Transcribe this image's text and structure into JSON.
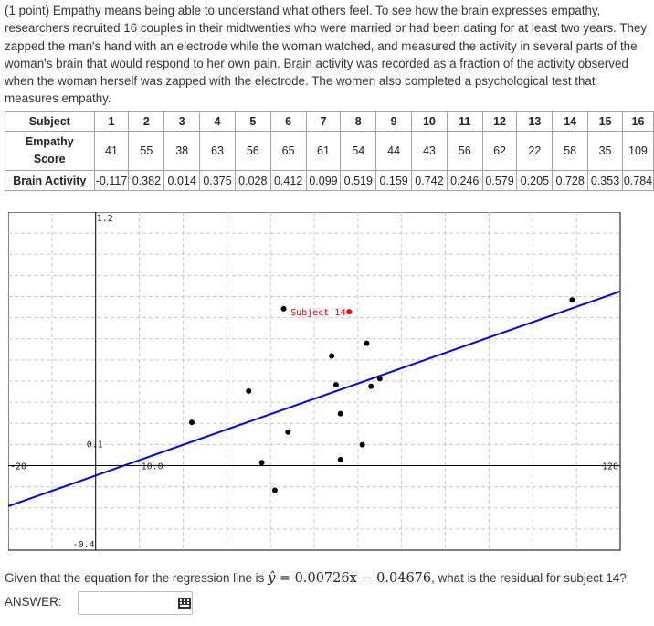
{
  "problem": {
    "text": "(1 point) Empathy means being able to understand what others feel. To see how the brain expresses empathy, researchers recruited 16 couples in their midtwenties who were married or had been dating for at least two years. They zapped the man's hand with an electrode while the woman watched, and measured the activity in several parts of the woman's brain that would respond to her own pain. Brain activity was recorded as a fraction of the activity observed when the woman herself was zapped with the electrode. The women also completed a psychological test that measures empathy."
  },
  "table": {
    "subject_header": "Subject",
    "empathy_header_line1": "Empathy",
    "empathy_header_line2": "Score",
    "brain_header": "Brain Activity",
    "subjects": [
      "1",
      "2",
      "3",
      "4",
      "5",
      "6",
      "7",
      "8",
      "9",
      "10",
      "11",
      "12",
      "13",
      "14",
      "15",
      "16"
    ],
    "empathy": [
      "41",
      "55",
      "38",
      "63",
      "56",
      "65",
      "61",
      "54",
      "44",
      "43",
      "56",
      "62",
      "22",
      "58",
      "35",
      "109"
    ],
    "brain": [
      "-0.117",
      "0.382",
      "0.014",
      "0.375",
      "0.028",
      "0.412",
      "0.099",
      "0.519",
      "0.159",
      "0.742",
      "0.246",
      "0.579",
      "0.205",
      "0.728",
      "0.353",
      "0.784"
    ]
  },
  "chart_data": {
    "type": "scatter",
    "x": [
      41,
      55,
      38,
      63,
      56,
      65,
      61,
      54,
      44,
      43,
      56,
      62,
      22,
      58,
      35,
      109
    ],
    "y": [
      -0.117,
      0.382,
      0.014,
      0.375,
      0.028,
      0.412,
      0.099,
      0.519,
      0.159,
      0.742,
      0.246,
      0.579,
      0.205,
      0.728,
      0.353,
      0.784
    ],
    "highlight_index": 13,
    "highlight_label": "Subject 14",
    "highlight_color": "#ff0000",
    "point_color": "#000000",
    "line_color": "#0000ff",
    "regression": {
      "slope": 0.00726,
      "intercept": -0.04676
    },
    "xlim": [
      -20,
      120
    ],
    "ylim": [
      -0.4,
      1.2
    ],
    "tick_labels": {
      "xmin": "-20",
      "xmax": "120",
      "x_origin": "10.0",
      "ymax": "1.2",
      "ymin": "-0.4",
      "y_mid": "0.1"
    },
    "grid": true
  },
  "question": {
    "prefix": "Given that the equation for the regression line is ",
    "equation_lhs": "ŷ",
    "equation_rhs": " = 0.00726x − 0.04676",
    "suffix": ", what is the residual for subject 14?"
  },
  "answer": {
    "label": "ANSWER:",
    "value": "",
    "keyboard_icon": "keyboard-icon"
  }
}
